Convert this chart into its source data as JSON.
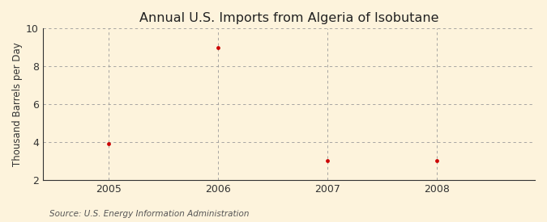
{
  "title": "Annual U.S. Imports from Algeria of Isobutane",
  "ylabel": "Thousand Barrels per Day",
  "source": "Source: U.S. Energy Information Administration",
  "x_values": [
    2005,
    2006,
    2007,
    2008
  ],
  "y_values": [
    3.93,
    9.0,
    3.0,
    3.0
  ],
  "xlim": [
    2004.4,
    2008.9
  ],
  "ylim": [
    2,
    10
  ],
  "yticks": [
    2,
    4,
    6,
    8,
    10
  ],
  "xticks": [
    2005,
    2006,
    2007,
    2008
  ],
  "marker_color": "#cc0000",
  "grid_color": "#999999",
  "background_color": "#fdf3dc",
  "title_fontsize": 11.5,
  "label_fontsize": 8.5,
  "tick_fontsize": 9,
  "source_fontsize": 7.5
}
